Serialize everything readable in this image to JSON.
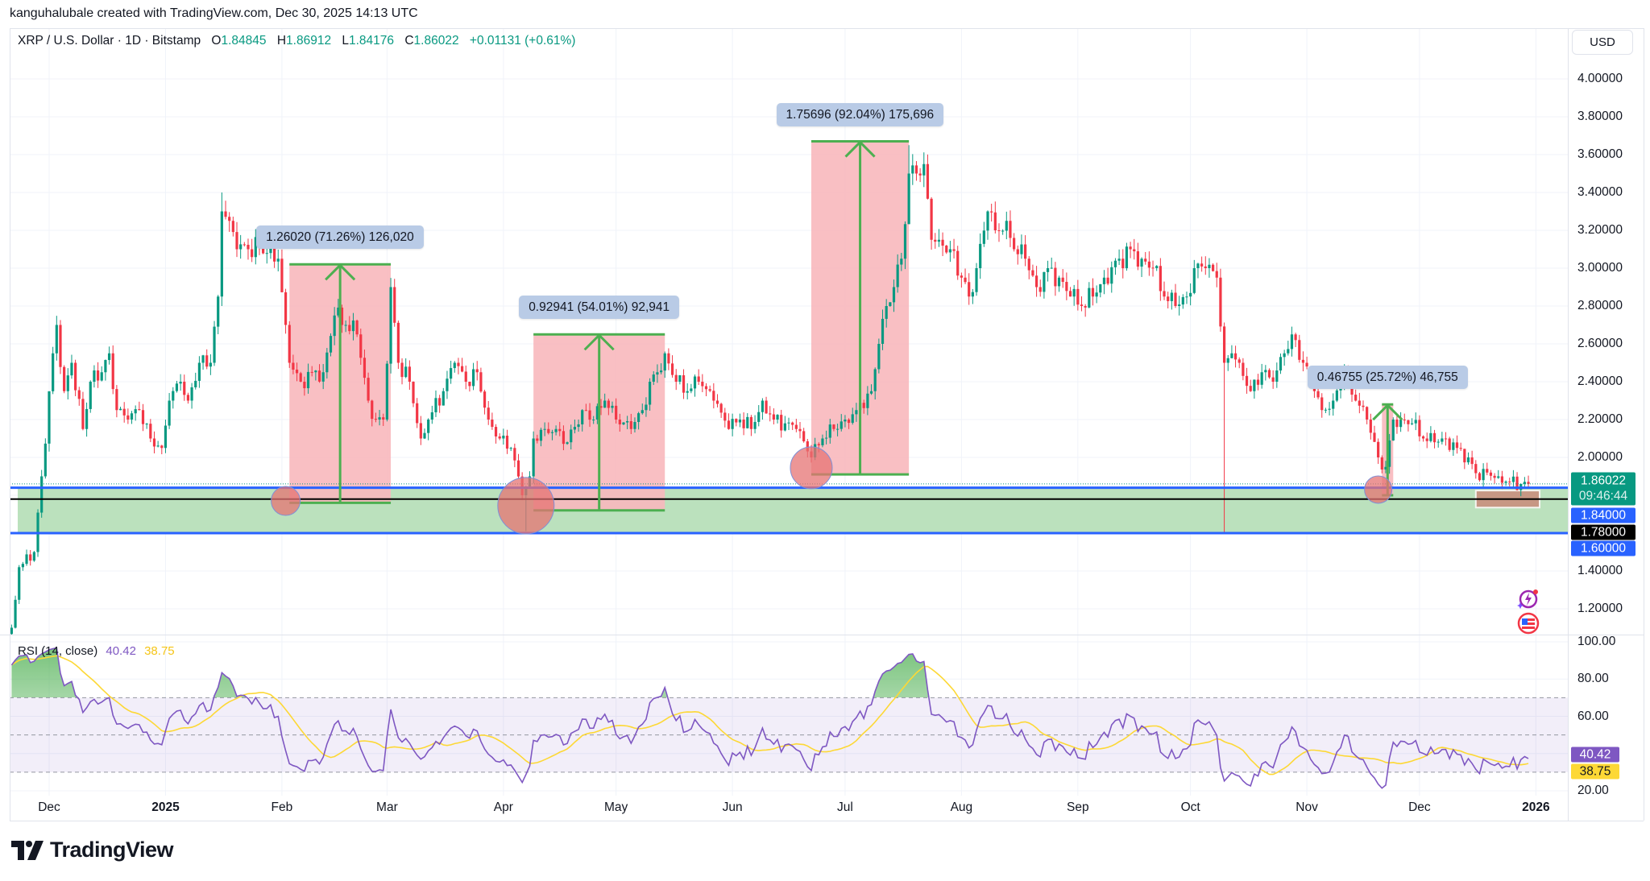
{
  "header": {
    "credit": "kanguhalubale created with TradingView.com, Dec 30, 2025 14:13 UTC"
  },
  "legend": {
    "symbol": "XRP / U.S. Dollar · 1D · Bitstamp",
    "o_label": "O",
    "open": "1.84845",
    "h_label": "H",
    "high": "1.86912",
    "l_label": "L",
    "low": "1.84176",
    "c_label": "C",
    "close": "1.86022",
    "change": "+0.01131 (+0.61%)"
  },
  "currency": "USD",
  "price_axis": {
    "ticks": [
      "4.00000",
      "3.80000",
      "3.60000",
      "3.40000",
      "3.20000",
      "3.00000",
      "2.80000",
      "2.60000",
      "2.40000",
      "2.20000",
      "2.00000",
      "1.40000",
      "1.20000"
    ]
  },
  "badges": {
    "last_price": "1.86022",
    "countdown": "09:46:44",
    "level_1": "1.84000",
    "level_2": "1.78000",
    "level_3": "1.60000"
  },
  "time_axis": [
    {
      "label": "Dec",
      "date": "2024-12-01",
      "bold": false
    },
    {
      "label": "2025",
      "date": "2025-01-01",
      "bold": true
    },
    {
      "label": "Feb",
      "date": "2025-02-01",
      "bold": false
    },
    {
      "label": "Mar",
      "date": "2025-03-01",
      "bold": false
    },
    {
      "label": "Apr",
      "date": "2025-04-01",
      "bold": false
    },
    {
      "label": "May",
      "date": "2025-05-01",
      "bold": false
    },
    {
      "label": "Jun",
      "date": "2025-06-01",
      "bold": false
    },
    {
      "label": "Jul",
      "date": "2025-07-01",
      "bold": false
    },
    {
      "label": "Aug",
      "date": "2025-08-01",
      "bold": false
    },
    {
      "label": "Sep",
      "date": "2025-09-01",
      "bold": false
    },
    {
      "label": "Oct",
      "date": "2025-10-01",
      "bold": false
    },
    {
      "label": "Nov",
      "date": "2025-11-01",
      "bold": false
    },
    {
      "label": "Dec",
      "date": "2025-12-01",
      "bold": false
    },
    {
      "label": "2026",
      "date": "2026-01-01",
      "bold": true
    }
  ],
  "rsi": {
    "title": "RSI (14, close)",
    "value": "40.42",
    "ma_value": "38.75",
    "ticks": [
      "100.00",
      "80.00",
      "60.00",
      "20.00"
    ],
    "upper_band": 70,
    "lower_band": 30
  },
  "colors": {
    "up": "#089981",
    "down": "#f23645",
    "rsi": "#7e57c2",
    "rsi_ma": "#fdd835",
    "zone": "#b7dfb9",
    "level_blue": "#2962ff",
    "level_black": "#000000",
    "measure_fill": "#f8b8bd",
    "measure_line": "#4caf50"
  },
  "chart_data": {
    "type": "candlestick",
    "symbol": "XRP / U.S. Dollar",
    "interval": "1D",
    "exchange": "Bitstamp",
    "ylim": [
      1.05,
      4.1
    ],
    "y_scale": "linear",
    "grid": true,
    "approx_daily_closes": [
      [
        "2024-11-21",
        1.1
      ],
      [
        "2024-11-23",
        1.42
      ],
      [
        "2024-11-27",
        1.5
      ],
      [
        "2024-11-29",
        1.9
      ],
      [
        "2024-12-02",
        2.55
      ],
      [
        "2024-12-03",
        2.7
      ],
      [
        "2024-12-05",
        2.35
      ],
      [
        "2024-12-07",
        2.5
      ],
      [
        "2024-12-10",
        2.15
      ],
      [
        "2024-12-12",
        2.4
      ],
      [
        "2024-12-15",
        2.45
      ],
      [
        "2024-12-17",
        2.55
      ],
      [
        "2024-12-19",
        2.25
      ],
      [
        "2024-12-22",
        2.2
      ],
      [
        "2024-12-25",
        2.25
      ],
      [
        "2024-12-28",
        2.1
      ],
      [
        "2024-12-31",
        2.05
      ],
      [
        "2025-01-02",
        2.3
      ],
      [
        "2025-01-05",
        2.4
      ],
      [
        "2025-01-07",
        2.3
      ],
      [
        "2025-01-10",
        2.5
      ],
      [
        "2025-01-13",
        2.5
      ],
      [
        "2025-01-15",
        2.85
      ],
      [
        "2025-01-16",
        3.3
      ],
      [
        "2025-01-18",
        3.25
      ],
      [
        "2025-01-20",
        3.1
      ],
      [
        "2025-01-23",
        3.1
      ],
      [
        "2025-01-26",
        3.12
      ],
      [
        "2025-01-28",
        3.08
      ],
      [
        "2025-01-31",
        3.05
      ],
      [
        "2025-02-02",
        2.7
      ],
      [
        "2025-02-03",
        2.5
      ],
      [
        "2025-02-06",
        2.4
      ],
      [
        "2025-02-09",
        2.45
      ],
      [
        "2025-02-12",
        2.45
      ],
      [
        "2025-02-15",
        2.75
      ],
      [
        "2025-02-18",
        2.7
      ],
      [
        "2025-02-21",
        2.65
      ],
      [
        "2025-02-24",
        2.3
      ],
      [
        "2025-02-26",
        2.2
      ],
      [
        "2025-02-28",
        2.2
      ],
      [
        "2025-03-02",
        2.9
      ],
      [
        "2025-03-04",
        2.5
      ],
      [
        "2025-03-07",
        2.4
      ],
      [
        "2025-03-10",
        2.1
      ],
      [
        "2025-03-12",
        2.2
      ],
      [
        "2025-03-16",
        2.35
      ],
      [
        "2025-03-19",
        2.5
      ],
      [
        "2025-03-22",
        2.4
      ],
      [
        "2025-03-25",
        2.45
      ],
      [
        "2025-03-28",
        2.2
      ],
      [
        "2025-03-31",
        2.1
      ],
      [
        "2025-04-03",
        2.05
      ],
      [
        "2025-04-06",
        1.8
      ],
      [
        "2025-04-08",
        1.9
      ],
      [
        "2025-04-09",
        2.1
      ],
      [
        "2025-04-12",
        2.15
      ],
      [
        "2025-04-15",
        2.15
      ],
      [
        "2025-04-18",
        2.08
      ],
      [
        "2025-04-22",
        2.25
      ],
      [
        "2025-04-25",
        2.2
      ],
      [
        "2025-04-28",
        2.3
      ],
      [
        "2025-05-01",
        2.2
      ],
      [
        "2025-05-05",
        2.15
      ],
      [
        "2025-05-08",
        2.25
      ],
      [
        "2025-05-10",
        2.4
      ],
      [
        "2025-05-12",
        2.45
      ],
      [
        "2025-05-14",
        2.55
      ],
      [
        "2025-05-17",
        2.4
      ],
      [
        "2025-05-20",
        2.35
      ],
      [
        "2025-05-23",
        2.4
      ],
      [
        "2025-05-27",
        2.3
      ],
      [
        "2025-05-31",
        2.15
      ],
      [
        "2025-06-03",
        2.2
      ],
      [
        "2025-06-06",
        2.15
      ],
      [
        "2025-06-09",
        2.3
      ],
      [
        "2025-06-12",
        2.2
      ],
      [
        "2025-06-15",
        2.18
      ],
      [
        "2025-06-18",
        2.15
      ],
      [
        "2025-06-22",
        2.0
      ],
      [
        "2025-06-25",
        2.1
      ],
      [
        "2025-06-28",
        2.15
      ],
      [
        "2025-07-01",
        2.2
      ],
      [
        "2025-07-04",
        2.25
      ],
      [
        "2025-07-08",
        2.35
      ],
      [
        "2025-07-10",
        2.6
      ],
      [
        "2025-07-12",
        2.8
      ],
      [
        "2025-07-14",
        2.9
      ],
      [
        "2025-07-16",
        3.05
      ],
      [
        "2025-07-18",
        3.5
      ],
      [
        "2025-07-20",
        3.5
      ],
      [
        "2025-07-22",
        3.55
      ],
      [
        "2025-07-24",
        3.15
      ],
      [
        "2025-07-26",
        3.15
      ],
      [
        "2025-07-29",
        3.1
      ],
      [
        "2025-08-01",
        2.95
      ],
      [
        "2025-08-03",
        2.85
      ],
      [
        "2025-08-05",
        3.0
      ],
      [
        "2025-08-08",
        3.3
      ],
      [
        "2025-08-10",
        3.2
      ],
      [
        "2025-08-13",
        3.25
      ],
      [
        "2025-08-15",
        3.1
      ],
      [
        "2025-08-18",
        3.05
      ],
      [
        "2025-08-21",
        2.9
      ],
      [
        "2025-08-24",
        3.0
      ],
      [
        "2025-08-27",
        2.95
      ],
      [
        "2025-08-30",
        2.85
      ],
      [
        "2025-09-02",
        2.8
      ],
      [
        "2025-09-05",
        2.85
      ],
      [
        "2025-09-08",
        2.95
      ],
      [
        "2025-09-12",
        3.05
      ],
      [
        "2025-09-15",
        3.1
      ],
      [
        "2025-09-18",
        3.05
      ],
      [
        "2025-09-21",
        3.0
      ],
      [
        "2025-09-24",
        2.85
      ],
      [
        "2025-09-27",
        2.8
      ],
      [
        "2025-09-30",
        2.85
      ],
      [
        "2025-10-02",
        3.0
      ],
      [
        "2025-10-05",
        3.0
      ],
      [
        "2025-10-08",
        2.95
      ],
      [
        "2025-10-10",
        2.5
      ],
      [
        "2025-10-12",
        2.55
      ],
      [
        "2025-10-14",
        2.5
      ],
      [
        "2025-10-17",
        2.35
      ],
      [
        "2025-10-20",
        2.45
      ],
      [
        "2025-10-23",
        2.4
      ],
      [
        "2025-10-26",
        2.55
      ],
      [
        "2025-10-28",
        2.65
      ],
      [
        "2025-10-31",
        2.5
      ],
      [
        "2025-11-03",
        2.35
      ],
      [
        "2025-11-05",
        2.25
      ],
      [
        "2025-11-08",
        2.3
      ],
      [
        "2025-11-11",
        2.45
      ],
      [
        "2025-11-14",
        2.3
      ],
      [
        "2025-11-17",
        2.2
      ],
      [
        "2025-11-20",
        2.0
      ],
      [
        "2025-11-22",
        1.95
      ],
      [
        "2025-11-24",
        2.2
      ],
      [
        "2025-11-26",
        2.2
      ],
      [
        "2025-11-29",
        2.18
      ],
      [
        "2025-12-02",
        2.1
      ],
      [
        "2025-12-05",
        2.08
      ],
      [
        "2025-12-08",
        2.1
      ],
      [
        "2025-12-11",
        2.05
      ],
      [
        "2025-12-14",
        2.0
      ],
      [
        "2025-12-17",
        1.88
      ],
      [
        "2025-12-19",
        1.92
      ],
      [
        "2025-12-22",
        1.9
      ],
      [
        "2025-12-25",
        1.87
      ],
      [
        "2025-12-28",
        1.86
      ],
      [
        "2025-12-30",
        1.86022
      ]
    ],
    "notable_wicks": [
      [
        "2025-04-07",
        "low",
        1.61
      ],
      [
        "2025-10-10",
        "low",
        1.6
      ],
      [
        "2025-07-18",
        "high",
        3.65
      ],
      [
        "2025-01-16",
        "high",
        3.4
      ]
    ],
    "horizontal_levels": [
      {
        "price": 1.84,
        "style": "solid",
        "color": "#2962ff"
      },
      {
        "price": 1.78,
        "style": "solid",
        "color": "#000000"
      },
      {
        "price": 1.6,
        "style": "solid",
        "color": "#2962ff"
      },
      {
        "price": 1.86022,
        "style": "dotted",
        "color": "#089981"
      }
    ],
    "support_zone": {
      "low": 1.6,
      "high": 1.84
    },
    "measurements": [
      {
        "from": "2025-02-03",
        "to": "2025-03-02",
        "low": 1.76,
        "high": 3.02,
        "label": "1.26020 (71.26%) 126,020"
      },
      {
        "from": "2025-04-09",
        "to": "2025-05-14",
        "low": 1.72,
        "high": 2.65,
        "label": "0.92941 (54.01%) 92,941"
      },
      {
        "from": "2025-06-22",
        "to": "2025-07-18",
        "low": 1.91,
        "high": 3.67,
        "label": "1.75696 (92.04%) 175,696"
      },
      {
        "from": "2025-11-21",
        "to": "2025-11-24",
        "low": 1.8,
        "high": 2.28,
        "label": "0.46755 (25.72%) 46,755"
      }
    ],
    "circle_markers": [
      {
        "date": "2025-02-02",
        "price": 1.77
      },
      {
        "date": "2025-04-07",
        "price": 1.745
      },
      {
        "date": "2025-06-22",
        "price": 1.945
      },
      {
        "date": "2025-11-20",
        "price": 1.83
      }
    ],
    "highlight_box": {
      "from": "2025-12-16",
      "to": "2026-01-02",
      "low": 1.735,
      "high": 1.825
    }
  },
  "brand": {
    "name": "TradingView"
  }
}
